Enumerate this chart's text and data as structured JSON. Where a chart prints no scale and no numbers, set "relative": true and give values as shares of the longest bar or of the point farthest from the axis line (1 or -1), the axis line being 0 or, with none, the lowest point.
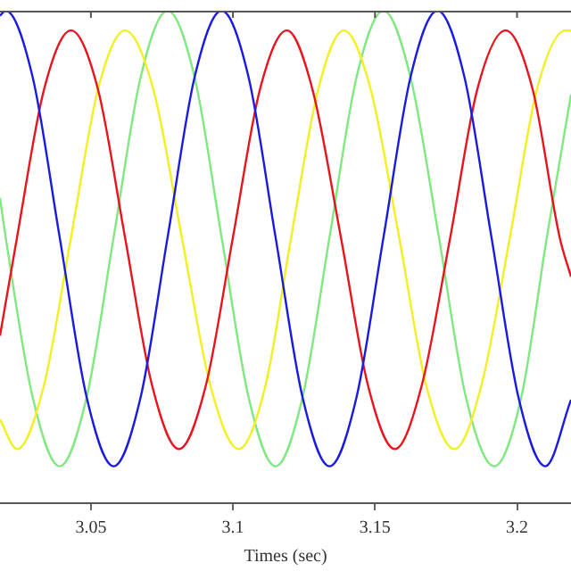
{
  "chart_data": {
    "type": "line",
    "xlabel": "Times (sec)",
    "relative": true,
    "xlim": [
      3.018,
      3.219
    ],
    "xticks": [
      3.05,
      3.1,
      3.15,
      3.2
    ],
    "grid": false,
    "legend": false,
    "series": [
      {
        "color": "#1a1ae0",
        "x": [
          3.018,
          3.02,
          3.0295,
          3.039,
          3.0485,
          3.058,
          3.0675,
          3.077,
          3.0865,
          3.096,
          3.1055,
          3.115,
          3.1245,
          3.134,
          3.1435,
          3.153,
          3.1625,
          3.172,
          3.1815,
          3.191,
          3.2005,
          3.21,
          3.219
        ],
        "values": [
          0.99,
          1.0,
          0.865,
          0.54,
          0.215,
          0.075,
          0.215,
          0.54,
          0.865,
          1.0,
          0.865,
          0.54,
          0.215,
          0.075,
          0.215,
          0.54,
          0.865,
          1.0,
          0.865,
          0.54,
          0.215,
          0.075,
          0.21
        ]
      },
      {
        "color": "#e8141e",
        "x": [
          3.018,
          3.024,
          3.0335,
          3.043,
          3.0525,
          3.062,
          3.0715,
          3.081,
          3.0905,
          3.1,
          3.1095,
          3.119,
          3.128,
          3.138,
          3.1475,
          3.157,
          3.1665,
          3.1765,
          3.186,
          3.196,
          3.2055,
          3.215,
          3.219
        ],
        "values": [
          0.34,
          0.54,
          0.84,
          0.96,
          0.84,
          0.54,
          0.24,
          0.11,
          0.24,
          0.54,
          0.84,
          0.96,
          0.84,
          0.54,
          0.24,
          0.11,
          0.24,
          0.54,
          0.84,
          0.96,
          0.84,
          0.54,
          0.46
        ]
      },
      {
        "color": "#f2f020",
        "x": [
          3.018,
          3.024,
          3.0335,
          3.043,
          3.0525,
          3.062,
          3.072,
          3.082,
          3.092,
          3.102,
          3.1115,
          3.1205,
          3.13,
          3.139,
          3.1485,
          3.1585,
          3.168,
          3.178,
          3.1875,
          3.1975,
          3.207,
          3.217,
          3.219
        ],
        "values": [
          0.17,
          0.11,
          0.24,
          0.54,
          0.84,
          0.96,
          0.84,
          0.54,
          0.24,
          0.11,
          0.24,
          0.54,
          0.84,
          0.96,
          0.84,
          0.54,
          0.24,
          0.11,
          0.24,
          0.54,
          0.84,
          0.96,
          0.96
        ]
      },
      {
        "color": "#80e880",
        "x": [
          3.018,
          3.02,
          3.0295,
          3.039,
          3.0485,
          3.058,
          3.0675,
          3.077,
          3.0865,
          3.096,
          3.1055,
          3.115,
          3.1245,
          3.134,
          3.1435,
          3.153,
          3.1625,
          3.1725,
          3.182,
          3.192,
          3.2015,
          3.2105,
          3.219
        ],
        "values": [
          0.62,
          0.54,
          0.215,
          0.075,
          0.215,
          0.54,
          0.865,
          1.0,
          0.865,
          0.54,
          0.215,
          0.075,
          0.215,
          0.54,
          0.865,
          1.0,
          0.865,
          0.54,
          0.215,
          0.075,
          0.215,
          0.54,
          0.83
        ]
      }
    ]
  }
}
